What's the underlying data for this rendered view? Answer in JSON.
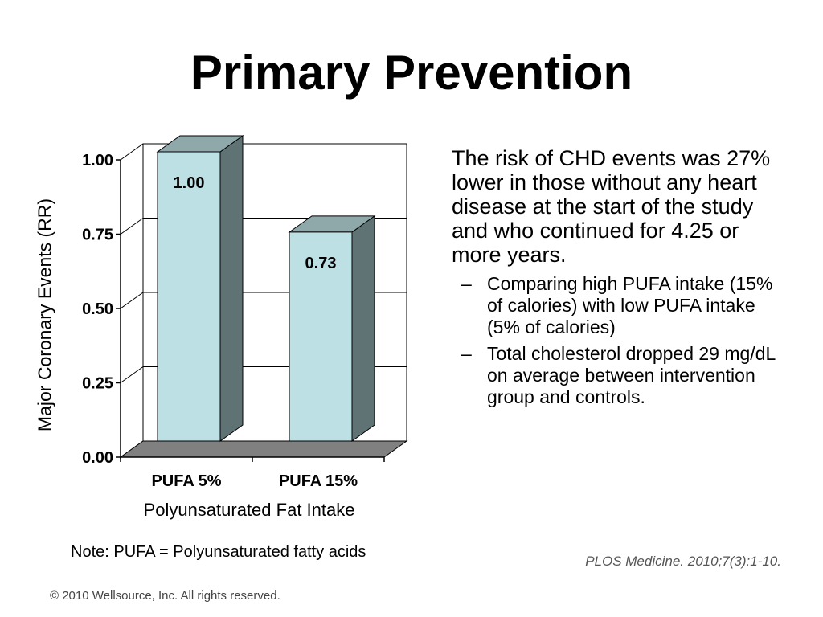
{
  "slide": {
    "title": "Primary Prevention",
    "note": "Note: PUFA = Polyunsaturated fatty acids",
    "citation": "PLOS Medicine. 2010;7(3):1-10.",
    "copyright": "© 2010 Wellsource, Inc. All rights reserved."
  },
  "bullets": {
    "main": "The risk of CHD events was 27% lower in those without any heart disease at the start of the study and who continued for 4.25 or more years.",
    "sub": [
      "Comparing high PUFA intake (15% of calories) with low PUFA intake (5% of calories)",
      "Total cholesterol dropped 29 mg/dL on average between intervention group and controls."
    ],
    "dash": "–"
  },
  "colors": {
    "bar_front": "#bde0e5",
    "bar_top": "#8fa8aa",
    "bar_side": "#5f7374",
    "floor": "#808080",
    "grid": "#000000"
  },
  "chart_data": {
    "type": "bar",
    "categories": [
      "PUFA 5%",
      "PUFA 15%"
    ],
    "values": [
      1.0,
      0.73
    ],
    "data_labels": [
      "1.00",
      "0.73"
    ],
    "xlabel": "Polyunsaturated Fat Intake",
    "ylabel": "Major Coronary Events (RR)",
    "ylim": [
      0,
      1
    ],
    "yticks": [
      0,
      0.25,
      0.5,
      0.75,
      1
    ],
    "ytick_labels": [
      "0.00",
      "0.25",
      "0.50",
      "0.75",
      "1.00"
    ],
    "grid": true,
    "style": "3d"
  }
}
